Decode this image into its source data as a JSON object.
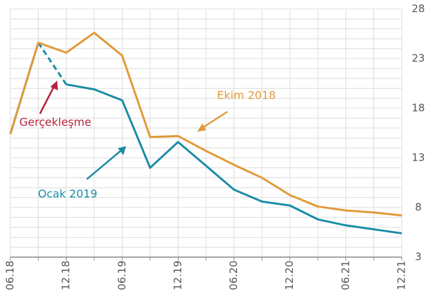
{
  "chart_data": {
    "type": "line",
    "categories": [
      "06.18",
      null,
      "12.18",
      null,
      "06.19",
      null,
      "12.19",
      null,
      "06.20",
      null,
      "12.20",
      null,
      "06.21",
      null,
      "12.21"
    ],
    "series": [
      {
        "name": "Ocak 2019",
        "color": "#1a8ca6",
        "dashed_segments": [
          1
        ],
        "values": [
          15.4,
          24.6,
          20.4,
          19.9,
          18.8,
          12.0,
          14.6,
          12.2,
          9.8,
          8.6,
          8.2,
          6.8,
          6.2,
          5.8,
          5.4
        ]
      },
      {
        "name": "Ekim 2018",
        "color": "#e09a3a",
        "dashed_segments": [],
        "values": [
          15.4,
          24.6,
          23.6,
          25.6,
          23.3,
          15.1,
          15.2,
          13.7,
          12.3,
          11.0,
          9.25,
          8.1,
          7.7,
          7.5,
          7.2
        ]
      }
    ],
    "annotations": [
      {
        "text": "Gerçekleşme",
        "color": "#b5233a"
      }
    ],
    "ylim": [
      3,
      28
    ],
    "yticks": [
      3,
      8,
      13,
      18,
      23,
      28
    ],
    "minor_grid_step": 1,
    "grid": true
  }
}
